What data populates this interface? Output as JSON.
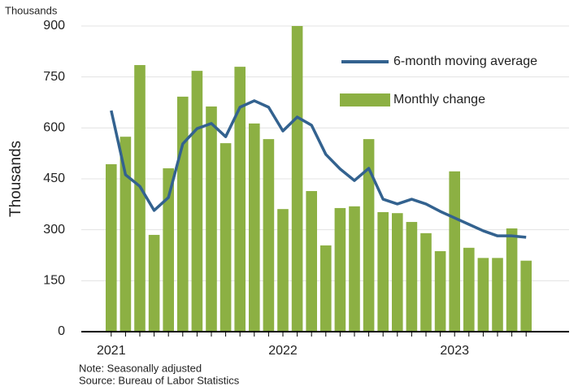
{
  "chart_data": {
    "type": "bar_line",
    "unit_label": "Thousands",
    "y_axis_label": "Thousands",
    "note": "Note: Seasonally adjusted",
    "source": "Source: Bureau of Labor Statistics",
    "categories": [
      "2021",
      null,
      null,
      null,
      null,
      null,
      null,
      null,
      null,
      null,
      null,
      null,
      "2022",
      null,
      null,
      null,
      null,
      null,
      null,
      null,
      null,
      null,
      null,
      null,
      "2023",
      null,
      null,
      null,
      null,
      null
    ],
    "series": [
      {
        "name": "Monthly change",
        "type": "bar",
        "color": "#8cb043",
        "values": [
          493,
          574,
          785,
          285,
          481,
          692,
          768,
          663,
          555,
          780,
          613,
          567,
          361,
          900,
          414,
          254,
          364,
          369,
          567,
          352,
          349,
          323,
          290,
          237,
          472,
          247,
          217,
          217,
          304,
          209
        ]
      },
      {
        "name": "6-month moving average",
        "type": "line",
        "color": "#33628f",
        "values": [
          651,
          462,
          428,
          357,
          395,
          553,
          598,
          613,
          574,
          661,
          680,
          661,
          591,
          632,
          608,
          522,
          479,
          445,
          481,
          390,
          376,
          390,
          376,
          354,
          335,
          316,
          297,
          282,
          282,
          278
        ]
      }
    ],
    "ylim": [
      0,
      900
    ],
    "yticks": [
      0,
      150,
      300,
      450,
      600,
      750,
      900
    ],
    "grid": true,
    "legend": "upper right"
  }
}
